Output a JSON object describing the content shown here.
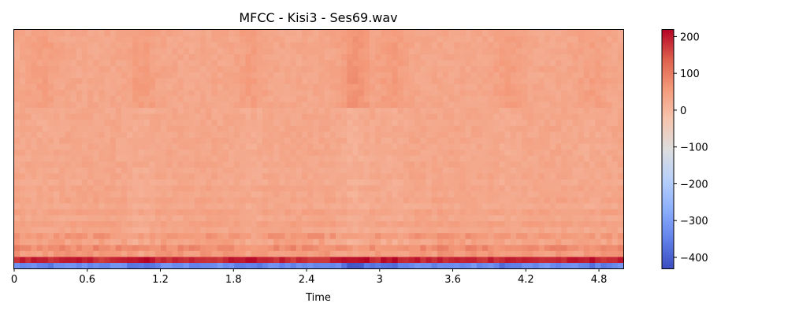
{
  "chart_data": {
    "type": "heatmap",
    "title": "MFCC - Kisi3 - Ses69.wav",
    "xlabel": "Time",
    "ylabel": "",
    "xlim": [
      0,
      5.0
    ],
    "x_ticks": [
      0,
      0.6,
      1.2,
      1.8,
      2.4,
      3.0,
      3.6,
      4.2,
      4.8
    ],
    "x_tick_labels": [
      "0",
      "0.6",
      "1.2",
      "1.8",
      "2.4",
      "3",
      "3.6",
      "4.2",
      "4.8"
    ],
    "n_coefficients": 40,
    "n_frames": 108,
    "colormap": "coolwarm",
    "colorbar": {
      "vmin": -430,
      "vmax": 218,
      "ticks": [
        200,
        100,
        0,
        -100,
        -200,
        -300,
        -400
      ],
      "tick_labels": [
        "200",
        "100",
        "0",
        "−100",
        "−200",
        "−300",
        "−400"
      ]
    },
    "row_means": [
      -330,
      185,
      55,
      78,
      40,
      58,
      32,
      45,
      30,
      42,
      28,
      38,
      30,
      36,
      28,
      34,
      30,
      34,
      30,
      32,
      30,
      32,
      30,
      32,
      30,
      32,
      30,
      32,
      30,
      32,
      30,
      32,
      30,
      32,
      30,
      32,
      30,
      32,
      30,
      32
    ],
    "energy_dips": [
      {
        "time": 0.25,
        "depth": 0.4
      },
      {
        "time": 1.05,
        "depth": 0.6
      },
      {
        "time": 1.95,
        "depth": 0.5
      },
      {
        "time": 2.8,
        "depth": 1.0
      },
      {
        "time": 3.1,
        "depth": 0.6
      },
      {
        "time": 4.05,
        "depth": 0.5
      },
      {
        "time": 4.75,
        "depth": 0.4
      }
    ]
  }
}
